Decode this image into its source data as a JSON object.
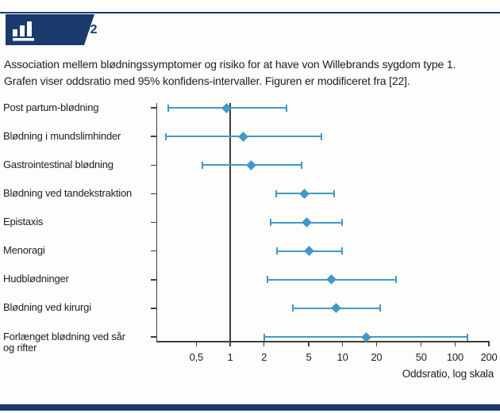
{
  "header": {
    "badge_label": "FIGUR 2"
  },
  "caption": {
    "line1": "Association mellem blødningssymptomer og risiko for at have von Willebrands sygdom type 1.",
    "line2": "Grafen viser oddsratio med 95% konfidens-intervaller. Figuren er modificeret fra [22]."
  },
  "chart_data": {
    "type": "forest",
    "subtype": "odds-ratio with 95% CI, diamond markers and capped error bars",
    "xlabel": "Oddsratio, log skala",
    "x_scale": "log",
    "x_ticks": [
      "0,5",
      "1",
      "2",
      "5",
      "10",
      "20",
      "50",
      "100",
      "200"
    ],
    "x_tick_values": [
      0.5,
      1,
      2,
      5,
      10,
      20,
      50,
      100,
      200
    ],
    "xlim": [
      0.25,
      250
    ],
    "reference_line": 1,
    "grid": "off",
    "series": [
      {
        "label": "Post partum-blødning",
        "or": 0.93,
        "ci_low": 0.28,
        "ci_high": 3.15
      },
      {
        "label": "Blødning i mundslimhinder",
        "or": 1.3,
        "ci_low": 0.27,
        "ci_high": 6.5
      },
      {
        "label": "Gastrointestinal blødning",
        "or": 1.55,
        "ci_low": 0.57,
        "ci_high": 4.3
      },
      {
        "label": "Blødning ved tandekstraktion",
        "or": 4.6,
        "ci_low": 2.55,
        "ci_high": 8.4
      },
      {
        "label": "Epistaxis",
        "or": 4.8,
        "ci_low": 2.3,
        "ci_high": 9.9
      },
      {
        "label": "Menoragi",
        "or": 5.0,
        "ci_low": 2.6,
        "ci_high": 9.9
      },
      {
        "label": "Hudblødninger",
        "or": 8.0,
        "ci_low": 2.15,
        "ci_high": 30
      },
      {
        "label": "Blødning ved kirurgi",
        "or": 8.8,
        "ci_low": 3.6,
        "ci_high": 21.5
      },
      {
        "label": "Forlænget blødning ved sår og rifter",
        "or": 16.3,
        "ci_low": 2.0,
        "ci_high": 128,
        "label_lines": [
          "Forlænget blødning ved sår",
          "og rifter"
        ]
      }
    ]
  },
  "colors": {
    "navy": "#1b3a6d",
    "marker_blue": "#4299c7",
    "axis": "#3e3e3d",
    "text": "#1d1d1b"
  }
}
